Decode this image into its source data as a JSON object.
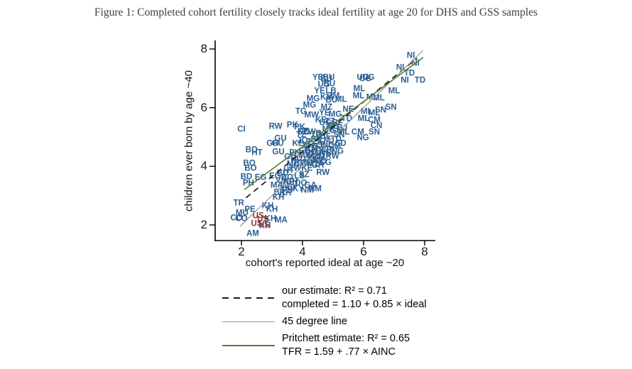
{
  "figure": {
    "title": "Figure 1: Completed cohort fertility closely tracks ideal fertility at age 20 for DHS and GSS samples"
  },
  "chart_data": {
    "type": "scatter",
    "marker": "country-code-text-labels",
    "xlabel": "cohort's reported ideal at age ~20",
    "ylabel": "children ever born by age ~40",
    "xlim": [
      1.3,
      8.35
    ],
    "ylim": [
      1.45,
      8.35
    ],
    "xticks": [
      2,
      4,
      6,
      8
    ],
    "yticks": [
      2,
      4,
      6,
      8
    ],
    "grid": false,
    "legend_position": "below-plot",
    "point_colors": {
      "dhs_gss": "#2a5f94",
      "us": "#8e3334"
    },
    "lines": [
      {
        "name": "our-estimate",
        "style": "dashed",
        "color": "#1a1a1a",
        "width": 1.7,
        "intercept": 1.1,
        "slope": 0.85,
        "x1": 2.15,
        "x2": 7.75
      },
      {
        "name": "45-degree",
        "style": "solid",
        "color": "#9a9a9a",
        "width": 1.3,
        "intercept": 0.0,
        "slope": 1.0,
        "x1": 1.95,
        "x2": 7.95
      },
      {
        "name": "pritchett",
        "style": "solid",
        "color": "#5e7d2a",
        "width": 1.6,
        "intercept": 1.59,
        "slope": 0.77,
        "x1": 2.1,
        "x2": 7.95
      }
    ],
    "legend": [
      {
        "line": "dashed-black",
        "rows": [
          "our estimate: R² =  0.71",
          "completed =  1.10 +  0.85 × ideal"
        ]
      },
      {
        "line": "solid-gray",
        "rows": [
          "45 degree line"
        ]
      },
      {
        "line": "solid-green",
        "rows": [
          "Pritchett estimate: R² = 0.65",
          "TFR = 1.59 + .77 × AINC"
        ]
      }
    ],
    "points": [
      {
        "c": "NI",
        "x": 7.55,
        "y": 7.75
      },
      {
        "c": "NI",
        "x": 7.7,
        "y": 7.5
      },
      {
        "c": "NI",
        "x": 7.2,
        "y": 7.35
      },
      {
        "c": "TD",
        "x": 7.5,
        "y": 7.15
      },
      {
        "c": "NI",
        "x": 7.35,
        "y": 6.9
      },
      {
        "c": "TD",
        "x": 7.85,
        "y": 6.9
      },
      {
        "c": "ML",
        "x": 7.0,
        "y": 6.55
      },
      {
        "c": "ML",
        "x": 6.5,
        "y": 6.3
      },
      {
        "c": "ML",
        "x": 6.28,
        "y": 6.32
      },
      {
        "c": "SN",
        "x": 6.9,
        "y": 6.0
      },
      {
        "c": "UG",
        "x": 5.98,
        "y": 7.0
      },
      {
        "c": "UG",
        "x": 6.16,
        "y": 7.0
      },
      {
        "c": "UG",
        "x": 6.06,
        "y": 6.97
      },
      {
        "c": "ML",
        "x": 5.86,
        "y": 6.63
      },
      {
        "c": "ML",
        "x": 5.84,
        "y": 6.37
      },
      {
        "c": "ML",
        "x": 6.1,
        "y": 5.85
      },
      {
        "c": "ML",
        "x": 6.35,
        "y": 5.8
      },
      {
        "c": "SN",
        "x": 6.56,
        "y": 5.9
      },
      {
        "c": "ML",
        "x": 6.0,
        "y": 5.6
      },
      {
        "c": "CM",
        "x": 6.35,
        "y": 5.55
      },
      {
        "c": "CN",
        "x": 6.42,
        "y": 5.37
      },
      {
        "c": "SN",
        "x": 6.35,
        "y": 5.15
      },
      {
        "c": "CM",
        "x": 5.81,
        "y": 5.15
      },
      {
        "c": "NG",
        "x": 5.98,
        "y": 4.95
      },
      {
        "c": "YE",
        "x": 4.5,
        "y": 7.0
      },
      {
        "c": "BU",
        "x": 4.86,
        "y": 7.0
      },
      {
        "c": "BU",
        "x": 4.78,
        "y": 6.95
      },
      {
        "c": "UG",
        "x": 4.7,
        "y": 6.76
      },
      {
        "c": "BU",
        "x": 4.88,
        "y": 6.78
      },
      {
        "c": "YE",
        "x": 4.56,
        "y": 6.54
      },
      {
        "c": "LB",
        "x": 4.93,
        "y": 6.54
      },
      {
        "c": "MG",
        "x": 4.35,
        "y": 6.29
      },
      {
        "c": "ZM",
        "x": 5.02,
        "y": 6.37
      },
      {
        "c": "KM",
        "x": 4.79,
        "y": 6.34
      },
      {
        "c": "ML",
        "x": 5.26,
        "y": 6.27
      },
      {
        "c": "BU",
        "x": 4.95,
        "y": 6.24
      },
      {
        "c": "MG",
        "x": 4.23,
        "y": 6.07
      },
      {
        "c": "MZ",
        "x": 4.79,
        "y": 6.0
      },
      {
        "c": "TG",
        "x": 3.95,
        "y": 5.85
      },
      {
        "c": "MW",
        "x": 4.3,
        "y": 5.72
      },
      {
        "c": "YE",
        "x": 4.72,
        "y": 5.8
      },
      {
        "c": "MG",
        "x": 5.07,
        "y": 5.76
      },
      {
        "c": "NE",
        "x": 5.5,
        "y": 5.92
      },
      {
        "c": "TD",
        "x": 5.45,
        "y": 5.6
      },
      {
        "c": "BF",
        "x": 5.15,
        "y": 5.45
      },
      {
        "c": "BJ",
        "x": 5.3,
        "y": 5.3
      },
      {
        "c": "TZ",
        "x": 4.9,
        "y": 5.5
      },
      {
        "c": "KE",
        "x": 4.6,
        "y": 5.55
      },
      {
        "c": "UG",
        "x": 4.75,
        "y": 5.45
      },
      {
        "c": "GN",
        "x": 5.1,
        "y": 5.2
      },
      {
        "c": "CI",
        "x": 2.0,
        "y": 5.25
      },
      {
        "c": "RW",
        "x": 3.12,
        "y": 5.34
      },
      {
        "c": "PK",
        "x": 3.67,
        "y": 5.39
      },
      {
        "c": "PK",
        "x": 3.91,
        "y": 5.32
      },
      {
        "c": "KE",
        "x": 4.02,
        "y": 5.17
      },
      {
        "c": "ZW",
        "x": 4.23,
        "y": 5.15
      },
      {
        "c": "GU",
        "x": 3.28,
        "y": 4.93
      },
      {
        "c": "GH",
        "x": 3.02,
        "y": 4.76
      },
      {
        "c": "GU",
        "x": 3.19,
        "y": 4.76
      },
      {
        "c": "BO",
        "x": 2.33,
        "y": 4.54
      },
      {
        "c": "HT",
        "x": 2.51,
        "y": 4.44
      },
      {
        "c": "GU",
        "x": 3.21,
        "y": 4.46
      },
      {
        "c": "BO",
        "x": 2.26,
        "y": 4.07
      },
      {
        "c": "BO",
        "x": 2.3,
        "y": 3.9
      },
      {
        "c": "BD",
        "x": 2.16,
        "y": 3.61
      },
      {
        "c": "EG",
        "x": 2.63,
        "y": 3.59
      },
      {
        "c": "PH",
        "x": 2.23,
        "y": 3.41
      },
      {
        "c": "GH",
        "x": 3.65,
        "y": 3.44
      },
      {
        "c": "GA",
        "x": 4.26,
        "y": 3.34
      },
      {
        "c": "RW",
        "x": 4.98,
        "y": 4.32
      },
      {
        "c": "MD",
        "x": 4.51,
        "y": 4.32
      },
      {
        "c": "RW",
        "x": 4.67,
        "y": 3.76
      },
      {
        "c": "NM",
        "x": 4.42,
        "y": 3.2
      },
      {
        "c": "KY",
        "x": 3.86,
        "y": 3.2
      },
      {
        "c": "NM",
        "x": 4.16,
        "y": 3.15
      },
      {
        "c": "KH",
        "x": 3.44,
        "y": 3.07
      },
      {
        "c": "KH",
        "x": 3.21,
        "y": 2.93
      },
      {
        "c": "MA",
        "x": 3.16,
        "y": 3.34
      },
      {
        "c": "TR",
        "x": 1.91,
        "y": 2.73
      },
      {
        "c": "PE",
        "x": 2.28,
        "y": 2.51
      },
      {
        "c": "KH",
        "x": 2.86,
        "y": 2.63
      },
      {
        "c": "KH",
        "x": 3.0,
        "y": 2.51
      },
      {
        "c": "MU",
        "x": 2.02,
        "y": 2.39
      },
      {
        "c": "CO",
        "x": 1.84,
        "y": 2.22
      },
      {
        "c": "CO",
        "x": 2.0,
        "y": 2.2
      },
      {
        "c": "KH",
        "x": 2.95,
        "y": 2.2
      },
      {
        "c": "MA",
        "x": 3.3,
        "y": 2.15
      },
      {
        "c": "KH",
        "x": 2.77,
        "y": 1.95
      },
      {
        "c": "AM",
        "x": 2.37,
        "y": 1.68
      },
      {
        "c": "SN",
        "x": 4.45,
        "y": 4.9
      },
      {
        "c": "CM",
        "x": 4.7,
        "y": 4.85
      },
      {
        "c": "NG",
        "x": 4.85,
        "y": 4.7
      },
      {
        "c": "TZ",
        "x": 4.3,
        "y": 4.8
      },
      {
        "c": "BJ",
        "x": 4.5,
        "y": 4.65
      },
      {
        "c": "BF",
        "x": 4.6,
        "y": 4.5
      },
      {
        "c": "NE",
        "x": 4.75,
        "y": 4.45
      },
      {
        "c": "TG",
        "x": 4.2,
        "y": 4.55
      },
      {
        "c": "GN",
        "x": 4.4,
        "y": 4.4
      },
      {
        "c": "ZM",
        "x": 4.55,
        "y": 4.3
      },
      {
        "c": "MW",
        "x": 4.1,
        "y": 4.35
      },
      {
        "c": "UG",
        "x": 4.25,
        "y": 4.2
      },
      {
        "c": "RW",
        "x": 3.95,
        "y": 4.1
      },
      {
        "c": "ET",
        "x": 4.05,
        "y": 4.5
      },
      {
        "c": "MZ",
        "x": 4.35,
        "y": 4.05
      },
      {
        "c": "GH",
        "x": 4.5,
        "y": 4.0
      },
      {
        "c": "KE",
        "x": 4.15,
        "y": 3.9
      },
      {
        "c": "CD",
        "x": 4.6,
        "y": 4.15
      },
      {
        "c": "CG",
        "x": 4.75,
        "y": 4.1
      },
      {
        "c": "LS",
        "x": 3.9,
        "y": 3.65
      },
      {
        "c": "SZ",
        "x": 4.05,
        "y": 3.7
      },
      {
        "c": "ZW",
        "x": 3.75,
        "y": 3.9
      },
      {
        "c": "CI",
        "x": 4.9,
        "y": 4.45
      },
      {
        "c": "SL",
        "x": 4.65,
        "y": 4.7
      },
      {
        "c": "LR",
        "x": 4.8,
        "y": 4.55
      },
      {
        "c": "TD",
        "x": 5.1,
        "y": 4.9
      },
      {
        "c": "SN",
        "x": 5.2,
        "y": 5.05
      },
      {
        "c": "ML",
        "x": 5.35,
        "y": 5.15
      },
      {
        "c": "CM",
        "x": 5.05,
        "y": 4.65
      },
      {
        "c": "NG",
        "x": 5.15,
        "y": 4.5
      },
      {
        "c": "BU",
        "x": 3.8,
        "y": 4.25
      },
      {
        "c": "MG",
        "x": 3.7,
        "y": 4.05
      },
      {
        "c": "HT",
        "x": 3.55,
        "y": 3.85
      },
      {
        "c": "BO",
        "x": 3.5,
        "y": 3.6
      },
      {
        "c": "GU",
        "x": 3.6,
        "y": 4.3
      },
      {
        "c": "PK",
        "x": 3.75,
        "y": 4.45
      },
      {
        "c": "IN",
        "x": 3.4,
        "y": 3.3
      },
      {
        "c": "NP",
        "x": 3.55,
        "y": 3.45
      },
      {
        "c": "BD",
        "x": 3.35,
        "y": 3.75
      },
      {
        "c": "ID",
        "x": 3.65,
        "y": 3.25
      },
      {
        "c": "PH",
        "x": 3.5,
        "y": 3.15
      },
      {
        "c": "VN",
        "x": 3.3,
        "y": 3.5
      },
      {
        "c": "DO",
        "x": 3.95,
        "y": 3.4
      },
      {
        "c": "BR",
        "x": 3.25,
        "y": 3.1
      },
      {
        "c": "EG",
        "x": 3.1,
        "y": 3.65
      },
      {
        "c": "JO",
        "x": 4.0,
        "y": 4.85
      },
      {
        "c": "YE",
        "x": 4.15,
        "y": 4.7
      },
      {
        "c": "KM",
        "x": 4.3,
        "y": 4.6
      },
      {
        "c": "TG",
        "x": 4.45,
        "y": 5.05
      },
      {
        "c": "BJ",
        "x": 4.6,
        "y": 5.1
      },
      {
        "c": "BF",
        "x": 4.75,
        "y": 5.0
      },
      {
        "c": "NE",
        "x": 5.0,
        "y": 5.35
      },
      {
        "c": "MR",
        "x": 4.85,
        "y": 5.25
      },
      {
        "c": "SD",
        "x": 5.25,
        "y": 4.75
      },
      {
        "c": "KE",
        "x": 3.85,
        "y": 4.75
      },
      {
        "c": "TZ",
        "x": 3.95,
        "y": 5.05
      },
      {
        "c": "UG",
        "x": 4.05,
        "y": 5.15
      },
      {
        "c": "MW",
        "x": 4.42,
        "y": 4.18
      },
      {
        "c": "ZM",
        "x": 4.3,
        "y": 4.42
      },
      {
        "c": "GN",
        "x": 4.12,
        "y": 4.08
      },
      {
        "c": "US",
        "x": 2.55,
        "y": 2.3,
        "g": "us"
      },
      {
        "c": "US",
        "x": 2.7,
        "y": 2.18,
        "g": "us"
      },
      {
        "c": "US",
        "x": 2.5,
        "y": 2.03,
        "g": "us"
      },
      {
        "c": "US",
        "x": 2.74,
        "y": 1.98,
        "g": "us"
      }
    ]
  }
}
